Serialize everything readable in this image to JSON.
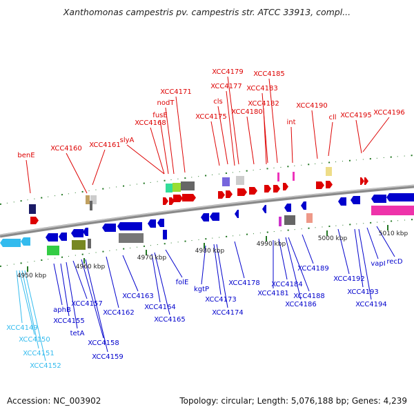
{
  "title": "Xanthomonas campestris pv. campestris str. ATCC 33913, compl...",
  "footer": {
    "accession": "Accession: NC_003902",
    "summary": "Topology: circular; Length: 5,076,188 bp; Genes: 4,239"
  },
  "colors": {
    "forward": "#dd0000",
    "reverse": "#0000cc",
    "cyan": "#33bbee",
    "backbone": "#888888"
  },
  "scale_ticks": [
    "4950 kbp",
    "4960 kbp",
    "4970 kbp",
    "4980 kbp",
    "4990 kbp",
    "5000 kbp",
    "5010 kbp"
  ],
  "top_labels": [
    "benE",
    "XCC4160",
    "XCC4161",
    "slyA",
    "XCC4168",
    "fusE",
    "nodT",
    "XCC4171",
    "XCC4175",
    "cls",
    "XCC4177",
    "XCC4179",
    "XCC4180",
    "XCC4182",
    "XCC4183",
    "XCC4185",
    "int",
    "XCC4190",
    "cll",
    "XCC4195",
    "XCC4196"
  ],
  "bottom_labels": [
    "XCC4149",
    "XCC4150",
    "XCC4151",
    "XCC4152",
    "aphB",
    "XCC4155",
    "tetA",
    "XCC4157",
    "XCC4158",
    "XCC4159",
    "XCC4162",
    "XCC4163",
    "XCC4164",
    "XCC4165",
    "folE",
    "kgtP",
    "XCC4173",
    "XCC4174",
    "XCC4178",
    "XCC4181",
    "XCC4184",
    "XCC4186",
    "XCC4188",
    "XCC4189",
    "XCC4192",
    "XCC4193",
    "XCC4194",
    "vapI",
    "recD"
  ]
}
